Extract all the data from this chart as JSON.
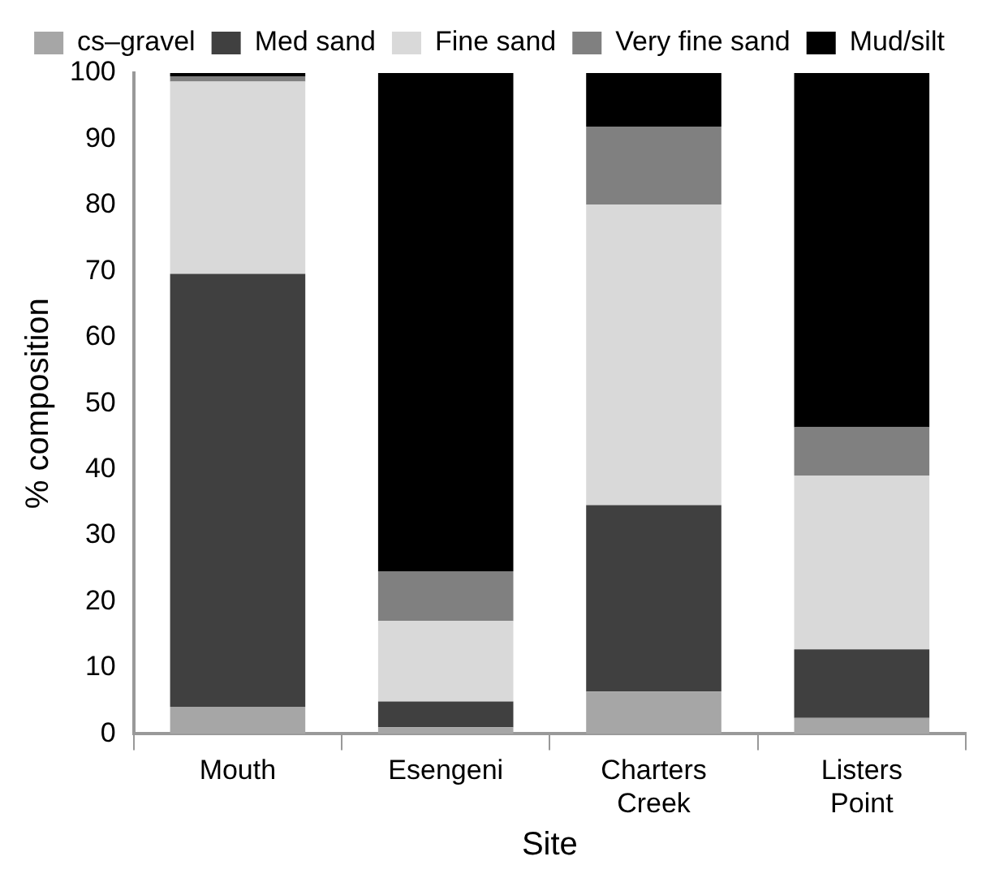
{
  "chart_data": {
    "type": "bar",
    "stacked": true,
    "xlabel": "Site",
    "ylabel": "% composition",
    "categories": [
      "Mouth",
      "Esengeni",
      "Charters Creek",
      "Listers Point"
    ],
    "series": [
      {
        "name": "cs–gravel",
        "color": "#a6a6a6",
        "values": [
          4.1,
          1.0,
          6.4,
          2.4
        ]
      },
      {
        "name": "Med sand",
        "color": "#404040",
        "values": [
          65.5,
          3.9,
          28.2,
          10.4
        ]
      },
      {
        "name": "Fine sand",
        "color": "#d9d9d9",
        "values": [
          29.1,
          12.2,
          45.5,
          26.3
        ]
      },
      {
        "name": "Very fine sand",
        "color": "#808080",
        "values": [
          0.8,
          7.5,
          11.8,
          7.3
        ]
      },
      {
        "name": "Mud/silt",
        "color": "#000000",
        "values": [
          0.5,
          75.4,
          8.1,
          53.6
        ]
      }
    ],
    "ylim": [
      0,
      100
    ],
    "yticks": [
      0,
      10,
      20,
      30,
      40,
      50,
      60,
      70,
      80,
      90,
      100
    ],
    "grid": false,
    "legend": "top"
  }
}
